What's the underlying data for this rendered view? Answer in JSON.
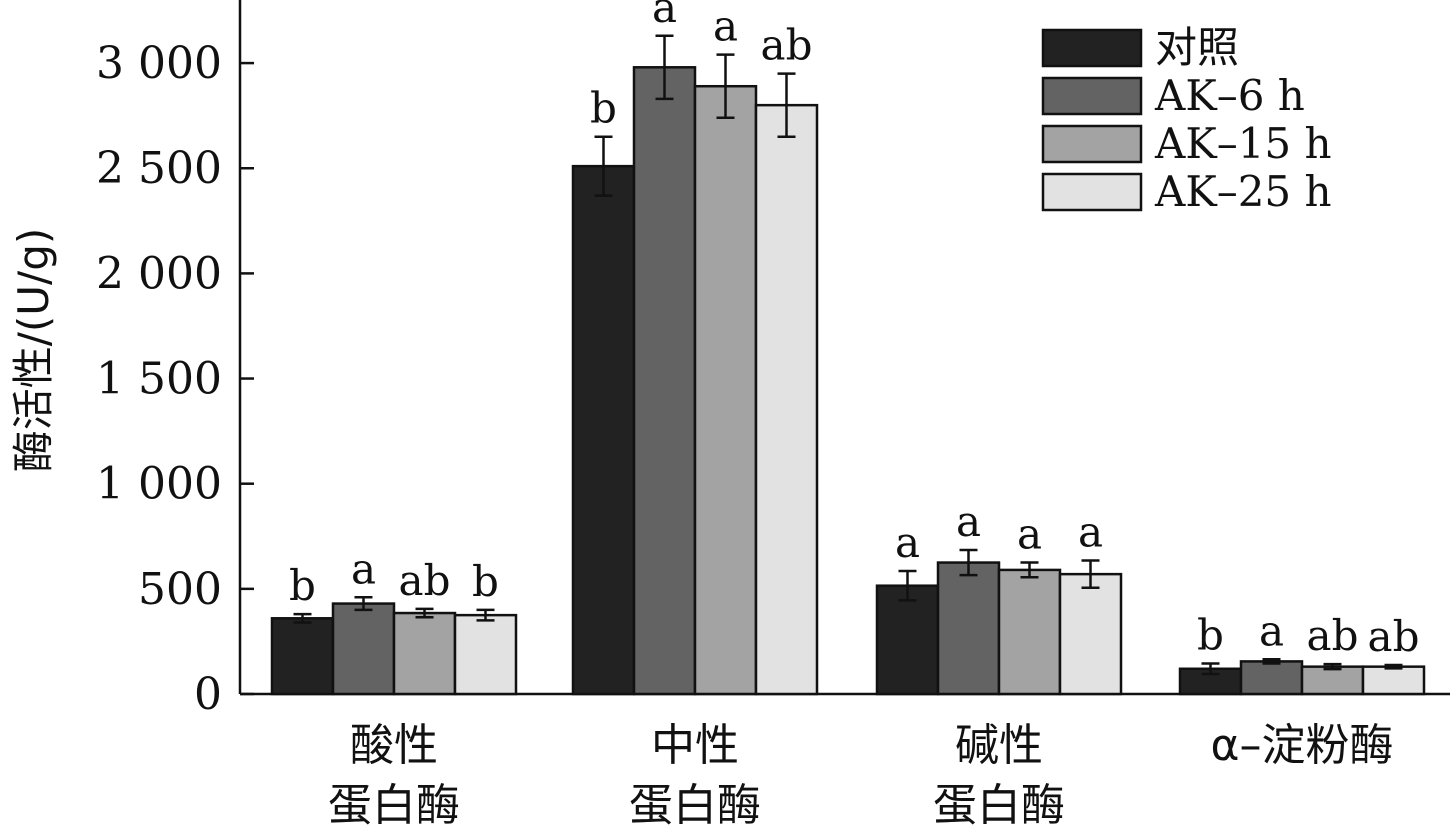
{
  "chart_data": {
    "type": "bar",
    "ylabel": "酶活性/(U/g)",
    "ylim": [
      0,
      3300
    ],
    "yticks": [
      {
        "value": 0,
        "label": "0"
      },
      {
        "value": 500,
        "label": "500"
      },
      {
        "value": 1000,
        "label": "1 000"
      },
      {
        "value": 1500,
        "label": "1 500"
      },
      {
        "value": 2000,
        "label": "2 000"
      },
      {
        "value": 2500,
        "label": "2 500"
      },
      {
        "value": 3000,
        "label": "3 000"
      }
    ],
    "categories": [
      {
        "line1": "酸性",
        "line2": "蛋白酶"
      },
      {
        "line1": "中性",
        "line2": "蛋白酶"
      },
      {
        "line1": "碱性",
        "line2": "蛋白酶"
      },
      {
        "line1": "α–淀粉酶",
        "line2": ""
      }
    ],
    "series": [
      {
        "name": "对照",
        "color": "#222222",
        "values": [
          360,
          2510,
          515,
          120
        ],
        "errors": [
          20,
          140,
          70,
          25
        ],
        "sig": [
          "b",
          "b",
          "a",
          "b"
        ]
      },
      {
        "name": "AK–6 h",
        "color": "#636363",
        "values": [
          430,
          2980,
          625,
          155
        ],
        "errors": [
          30,
          150,
          60,
          10
        ],
        "sig": [
          "a",
          "a",
          "a",
          "a"
        ]
      },
      {
        "name": "AK–15 h",
        "color": "#a3a3a3",
        "values": [
          385,
          2890,
          590,
          130
        ],
        "errors": [
          20,
          150,
          35,
          12
        ],
        "sig": [
          "ab",
          "a",
          "a",
          "ab"
        ]
      },
      {
        "name": "AK–25 h",
        "color": "#e2e2e2",
        "values": [
          375,
          2800,
          570,
          130
        ],
        "errors": [
          25,
          150,
          65,
          8
        ],
        "sig": [
          "b",
          "ab",
          "a",
          "ab"
        ]
      }
    ],
    "legend_position": "top-right",
    "grid": false
  }
}
